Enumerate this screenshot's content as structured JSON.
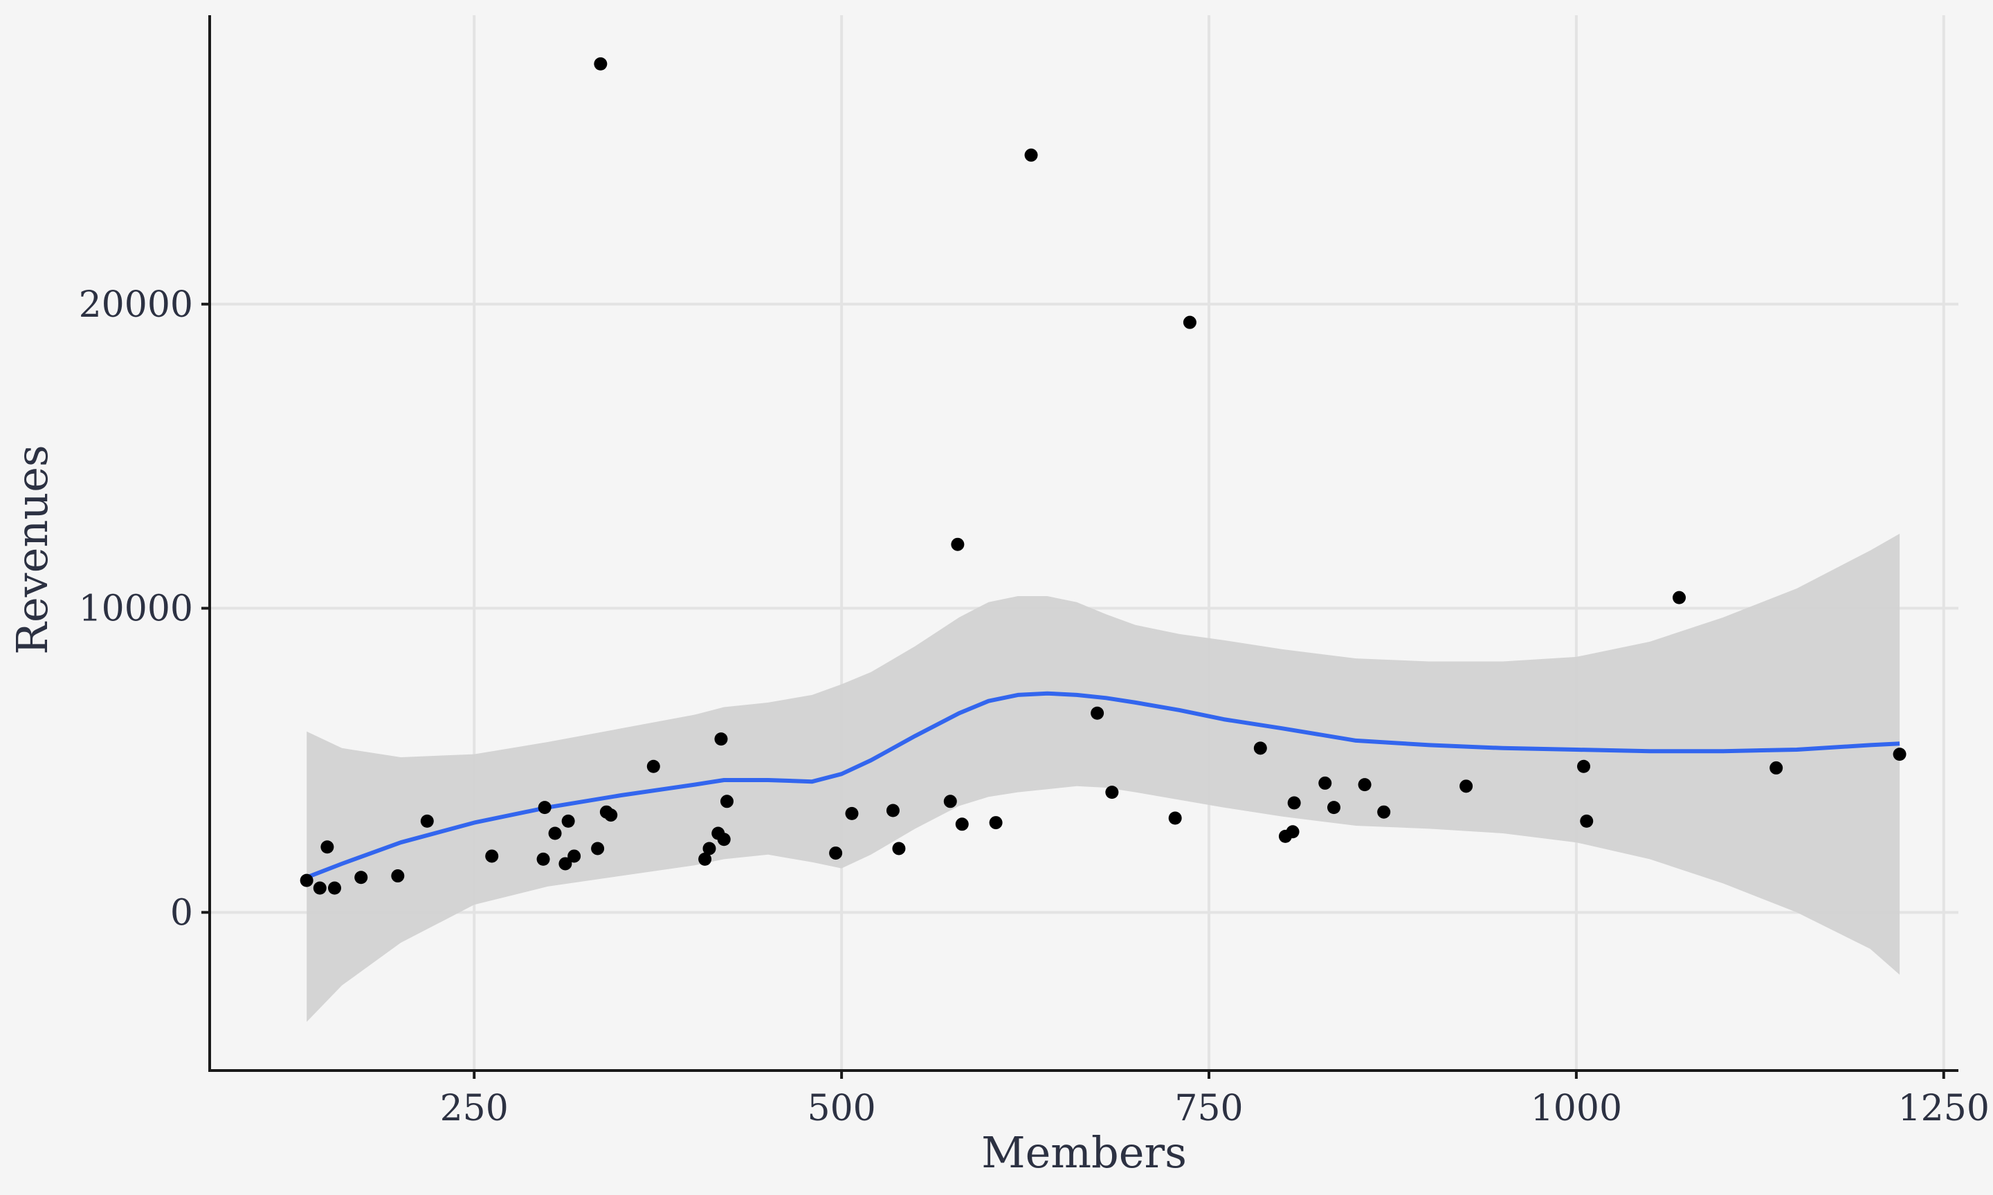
{
  "chart_data": {
    "type": "scatter",
    "xlabel": "Members",
    "ylabel": "Revenues",
    "xlim": [
      70,
      1260
    ],
    "ylim": [
      -5200,
      29500
    ],
    "x_ticks": [
      250,
      500,
      750,
      1000,
      1250
    ],
    "x_tick_labels": [
      "250",
      "500",
      "750",
      "1000",
      "1250"
    ],
    "y_ticks": [
      0,
      10000,
      20000
    ],
    "y_tick_labels": [
      "0",
      "10000",
      "20000"
    ],
    "grid": true,
    "legend": "none",
    "points": [
      [
        136,
        1050
      ],
      [
        145,
        800
      ],
      [
        150,
        2150
      ],
      [
        155,
        800
      ],
      [
        173,
        1150
      ],
      [
        198,
        1200
      ],
      [
        218,
        3000
      ],
      [
        262,
        1850
      ],
      [
        297,
        1750
      ],
      [
        298,
        3450
      ],
      [
        305,
        2600
      ],
      [
        312,
        1600
      ],
      [
        314,
        3000
      ],
      [
        318,
        1850
      ],
      [
        334,
        2100
      ],
      [
        336,
        27900
      ],
      [
        340,
        3300
      ],
      [
        343,
        3200
      ],
      [
        372,
        4800
      ],
      [
        407,
        1750
      ],
      [
        410,
        2100
      ],
      [
        416,
        2600
      ],
      [
        418,
        5700
      ],
      [
        420,
        2400
      ],
      [
        422,
        3650
      ],
      [
        496,
        1950
      ],
      [
        507,
        3250
      ],
      [
        535,
        3350
      ],
      [
        539,
        2100
      ],
      [
        574,
        3650
      ],
      [
        579,
        12100
      ],
      [
        582,
        2900
      ],
      [
        605,
        2950
      ],
      [
        629,
        24900
      ],
      [
        674,
        6550
      ],
      [
        684,
        3950
      ],
      [
        727,
        3100
      ],
      [
        737,
        19400
      ],
      [
        785,
        5400
      ],
      [
        802,
        2500
      ],
      [
        807,
        2650
      ],
      [
        808,
        3600
      ],
      [
        829,
        4250
      ],
      [
        835,
        3450
      ],
      [
        856,
        4200
      ],
      [
        869,
        3300
      ],
      [
        925,
        4150
      ],
      [
        1005,
        4800
      ],
      [
        1007,
        3000
      ],
      [
        1070,
        10350
      ],
      [
        1136,
        4750
      ],
      [
        1220,
        5200
      ]
    ],
    "smooth": {
      "color": "#3366ee",
      "band_color": "#d2d2d2",
      "x": [
        136,
        160,
        200,
        250,
        300,
        350,
        400,
        420,
        450,
        480,
        500,
        520,
        550,
        580,
        600,
        620,
        640,
        660,
        680,
        700,
        730,
        760,
        800,
        850,
        900,
        950,
        1000,
        1050,
        1100,
        1150,
        1200,
        1220
      ],
      "fit": [
        1150,
        1600,
        2300,
        2950,
        3450,
        3850,
        4200,
        4350,
        4350,
        4300,
        4550,
        5000,
        5800,
        6550,
        6950,
        7150,
        7200,
        7150,
        7050,
        6900,
        6650,
        6350,
        6050,
        5650,
        5500,
        5400,
        5350,
        5300,
        5300,
        5350,
        5500,
        5550
      ],
      "upper": [
        5950,
        5400,
        5100,
        5200,
        5600,
        6050,
        6500,
        6750,
        6900,
        7150,
        7500,
        7900,
        8750,
        9700,
        10200,
        10400,
        10400,
        10200,
        9800,
        9450,
        9150,
        8950,
        8650,
        8350,
        8250,
        8250,
        8400,
        8900,
        9700,
        10650,
        11900,
        12450
      ],
      "lower": [
        -3600,
        -2400,
        -1000,
        250,
        850,
        1200,
        1550,
        1750,
        1900,
        1650,
        1450,
        1900,
        2750,
        3500,
        3800,
        3950,
        4050,
        4150,
        4100,
        3950,
        3700,
        3450,
        3150,
        2850,
        2750,
        2600,
        2300,
        1750,
        950,
        0,
        -1200,
        -2050
      ]
    }
  }
}
